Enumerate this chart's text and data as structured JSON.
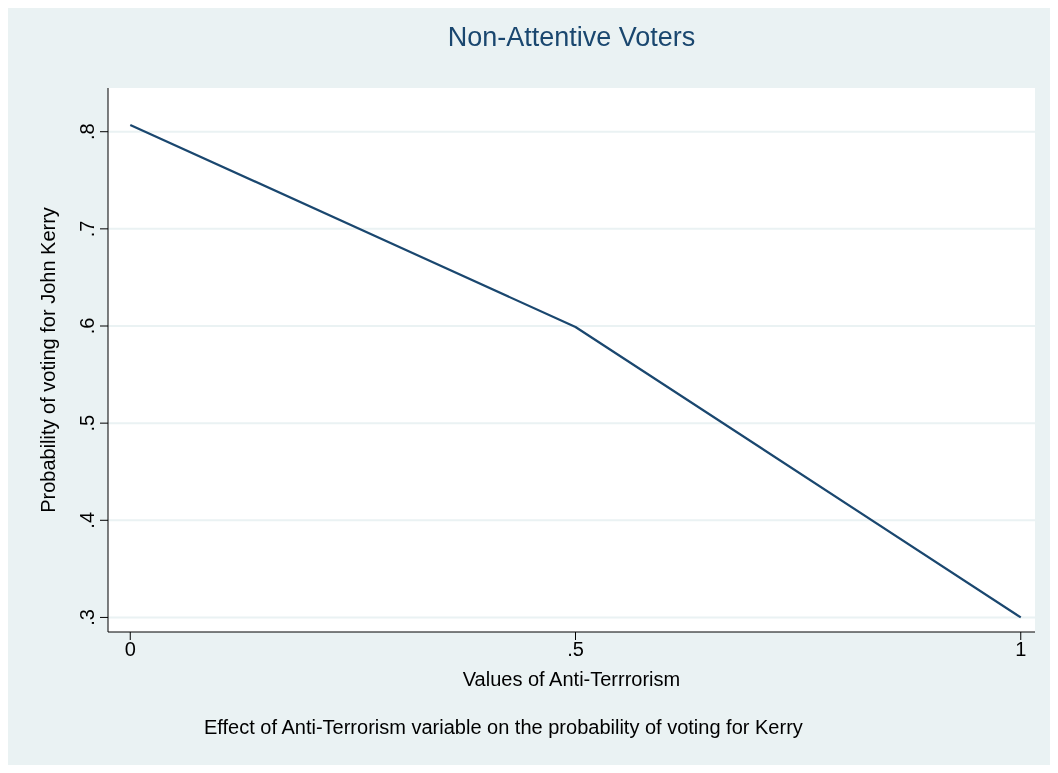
{
  "chart_data": {
    "type": "line",
    "title": "Non-Attentive Voters",
    "xlabel": "Values of Anti-Terrrorism",
    "ylabel": "Probability of voting for John Kerry",
    "annotations": [
      "Effect of Anti-Terrorism variable on the probability of voting for Kerry"
    ],
    "x": [
      0,
      0.5,
      1
    ],
    "series": [
      {
        "color": "#1a476f",
        "values": [
          0.807,
          0.599,
          0.3
        ]
      }
    ],
    "xlim": [
      -0.025,
      1.016
    ],
    "xticks": [
      {
        "value": 0,
        "label": "0"
      },
      {
        "value": 0.5,
        "label": ".5"
      },
      {
        "value": 1,
        "label": "1"
      }
    ],
    "ylim": [
      0.285,
      0.845
    ],
    "yticks": [
      {
        "value": 0.3,
        "label": ".3"
      },
      {
        "value": 0.4,
        "label": ".4"
      },
      {
        "value": 0.5,
        "label": ".5"
      },
      {
        "value": 0.6,
        "label": ".6"
      },
      {
        "value": 0.7,
        "label": ".7"
      },
      {
        "value": 0.8,
        "label": ".8"
      }
    ],
    "grid": "y",
    "legend": false,
    "marker": "none",
    "line_style": "solid"
  }
}
